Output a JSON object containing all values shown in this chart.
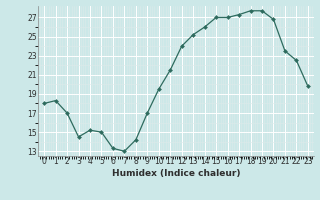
{
  "x": [
    0,
    1,
    2,
    3,
    4,
    5,
    6,
    7,
    8,
    9,
    10,
    11,
    12,
    13,
    14,
    15,
    16,
    17,
    18,
    19,
    20,
    21,
    22,
    23
  ],
  "y": [
    18.0,
    18.3,
    17.0,
    14.5,
    15.2,
    15.0,
    13.3,
    13.0,
    14.2,
    17.0,
    19.5,
    21.5,
    24.0,
    25.2,
    26.0,
    27.0,
    27.0,
    27.3,
    27.7,
    27.7,
    26.8,
    23.5,
    22.5,
    19.8
  ],
  "line_color": "#2e6b5e",
  "marker": "D",
  "marker_size": 2.0,
  "bg_color": "#cce8e8",
  "grid_color": "#ffffff",
  "grid_minor_color": "#e0f0f0",
  "xlabel": "Humidex (Indice chaleur)",
  "ylabel_ticks": [
    13,
    15,
    17,
    19,
    21,
    23,
    25,
    27
  ],
  "xlim": [
    -0.5,
    23.5
  ],
  "ylim": [
    12.5,
    28.2
  ],
  "xtick_labels": [
    "0",
    "1",
    "2",
    "3",
    "4",
    "5",
    "6",
    "7",
    "8",
    "9",
    "10",
    "11",
    "12",
    "13",
    "14",
    "15",
    "16",
    "17",
    "18",
    "19",
    "20",
    "21",
    "22",
    "23"
  ],
  "font_color": "#2e2e2e",
  "axis_fontsize": 6.5,
  "tick_fontsize": 5.5
}
